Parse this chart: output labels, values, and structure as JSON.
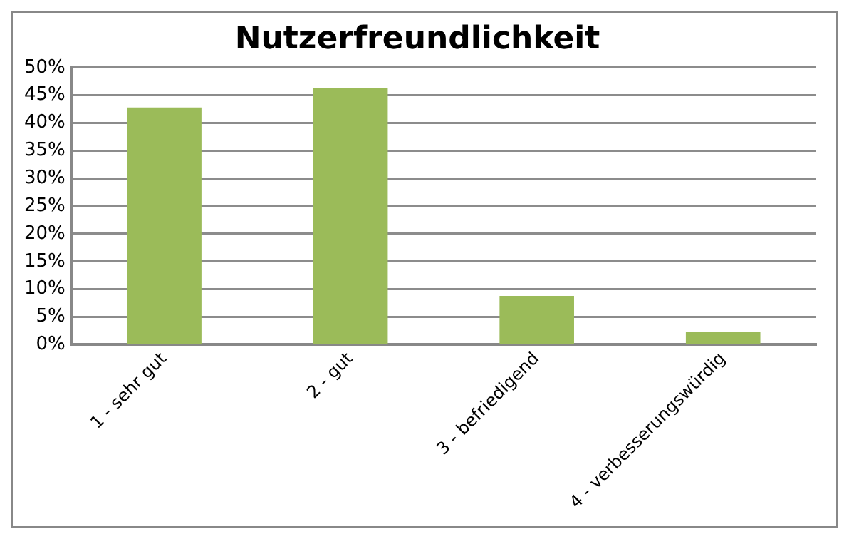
{
  "chart_data": {
    "type": "bar",
    "title": "Nutzerfreundlichkeit",
    "categories": [
      "1 - sehr gut",
      "2 - gut",
      "3 - befriedigend",
      "4 - verbesserungswürdig"
    ],
    "values": [
      42.8,
      46.3,
      8.8,
      2.3
    ],
    "color": "#9bbb59",
    "ylim": [
      0,
      50
    ],
    "yticks": [
      {
        "value": 0,
        "label": "0%"
      },
      {
        "value": 5,
        "label": "5%"
      },
      {
        "value": 10,
        "label": "10%"
      },
      {
        "value": 15,
        "label": "15%"
      },
      {
        "value": 20,
        "label": "20%"
      },
      {
        "value": 25,
        "label": "25%"
      },
      {
        "value": 30,
        "label": "30%"
      },
      {
        "value": 35,
        "label": "35%"
      },
      {
        "value": 40,
        "label": "40%"
      },
      {
        "value": 45,
        "label": "45%"
      },
      {
        "value": 50,
        "label": "50%"
      }
    ],
    "grid": "y"
  }
}
